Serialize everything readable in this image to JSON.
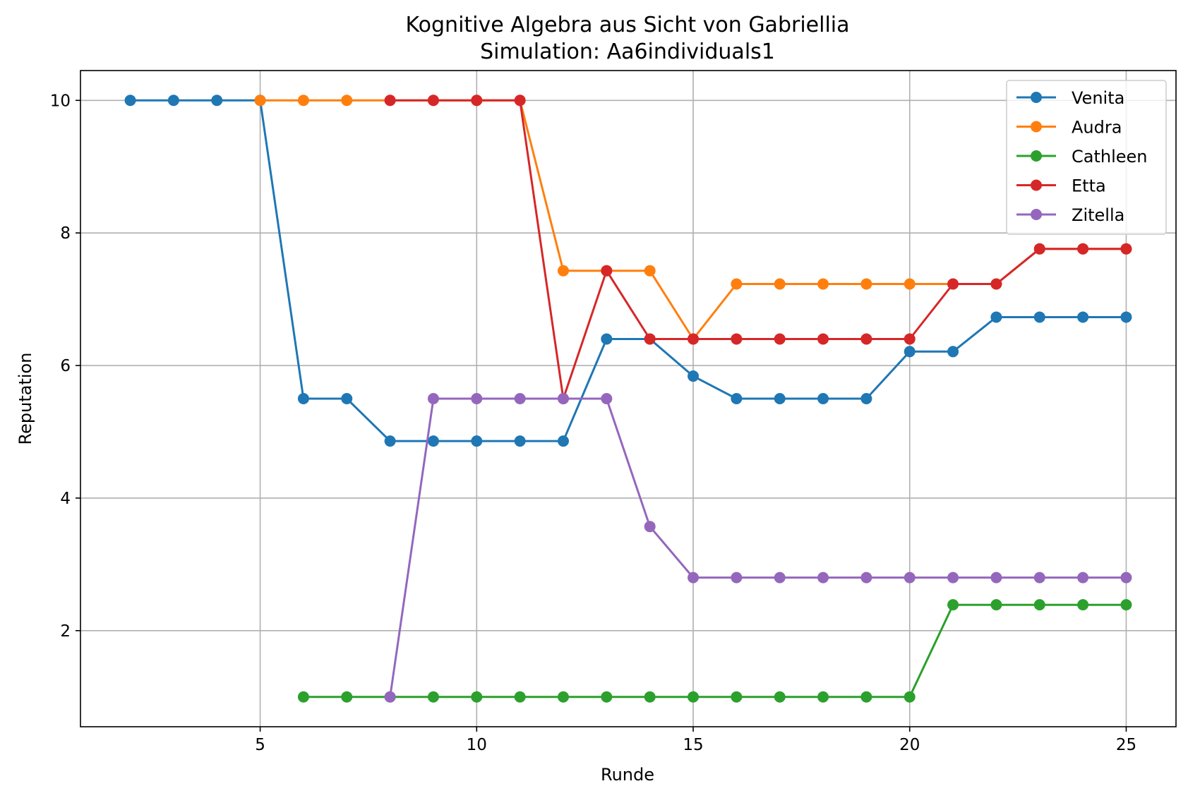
{
  "chart_data": {
    "type": "line",
    "title": "Kognitive Algebra aus Sicht von Gabriellia",
    "subtitle": "Simulation: Aa6individuals1",
    "xlabel": "Runde",
    "ylabel": "Reputation",
    "xlim": [
      0.85,
      26.15
    ],
    "ylim": [
      0.55,
      10.45
    ],
    "xticks": [
      5,
      10,
      15,
      20,
      25
    ],
    "yticks": [
      2,
      4,
      6,
      8,
      10
    ],
    "grid": true,
    "legend_position": "top-right",
    "series": [
      {
        "name": "Venita",
        "color": "#1f77b4",
        "x": [
          2,
          3,
          4,
          5,
          6,
          7,
          8,
          9,
          10,
          11,
          12,
          13,
          14,
          15,
          16,
          17,
          18,
          19,
          20,
          21,
          22,
          23,
          24,
          25
        ],
        "y": [
          10,
          10,
          10,
          10,
          5.5,
          5.5,
          4.86,
          4.86,
          4.86,
          4.86,
          4.86,
          6.4,
          6.4,
          5.84,
          5.5,
          5.5,
          5.5,
          5.5,
          6.21,
          6.21,
          6.73,
          6.73,
          6.73,
          6.73
        ]
      },
      {
        "name": "Audra",
        "color": "#ff7f0e",
        "x": [
          5,
          6,
          7,
          8,
          9,
          10,
          11,
          12,
          13,
          14,
          15,
          16,
          17,
          18,
          19,
          20,
          21,
          22,
          23,
          24,
          25
        ],
        "y": [
          10,
          10,
          10,
          10,
          10,
          10,
          10,
          7.43,
          7.43,
          7.43,
          6.4,
          7.23,
          7.23,
          7.23,
          7.23,
          7.23,
          7.23,
          7.23,
          7.76,
          7.76,
          7.76
        ]
      },
      {
        "name": "Cathleen",
        "color": "#2ca02c",
        "x": [
          6,
          7,
          8,
          9,
          10,
          11,
          12,
          13,
          14,
          15,
          16,
          17,
          18,
          19,
          20,
          21,
          22,
          23,
          24,
          25
        ],
        "y": [
          1,
          1,
          1,
          1,
          1,
          1,
          1,
          1,
          1,
          1,
          1,
          1,
          1,
          1,
          1,
          2.39,
          2.39,
          2.39,
          2.39,
          2.39
        ]
      },
      {
        "name": "Etta",
        "color": "#d62728",
        "x": [
          8,
          9,
          10,
          11,
          12,
          13,
          14,
          15,
          16,
          17,
          18,
          19,
          20,
          21,
          22,
          23,
          24,
          25
        ],
        "y": [
          10,
          10,
          10,
          10,
          5.5,
          7.43,
          6.4,
          6.4,
          6.4,
          6.4,
          6.4,
          6.4,
          6.4,
          7.23,
          7.23,
          7.76,
          7.76,
          7.76
        ]
      },
      {
        "name": "Zitella",
        "color": "#9467bd",
        "x": [
          8,
          9,
          10,
          11,
          12,
          13,
          14,
          15,
          16,
          17,
          18,
          19,
          20,
          21,
          22,
          23,
          24,
          25
        ],
        "y": [
          1,
          5.5,
          5.5,
          5.5,
          5.5,
          5.5,
          3.57,
          2.8,
          2.8,
          2.8,
          2.8,
          2.8,
          2.8,
          2.8,
          2.8,
          2.8,
          2.8,
          2.8
        ]
      }
    ]
  }
}
